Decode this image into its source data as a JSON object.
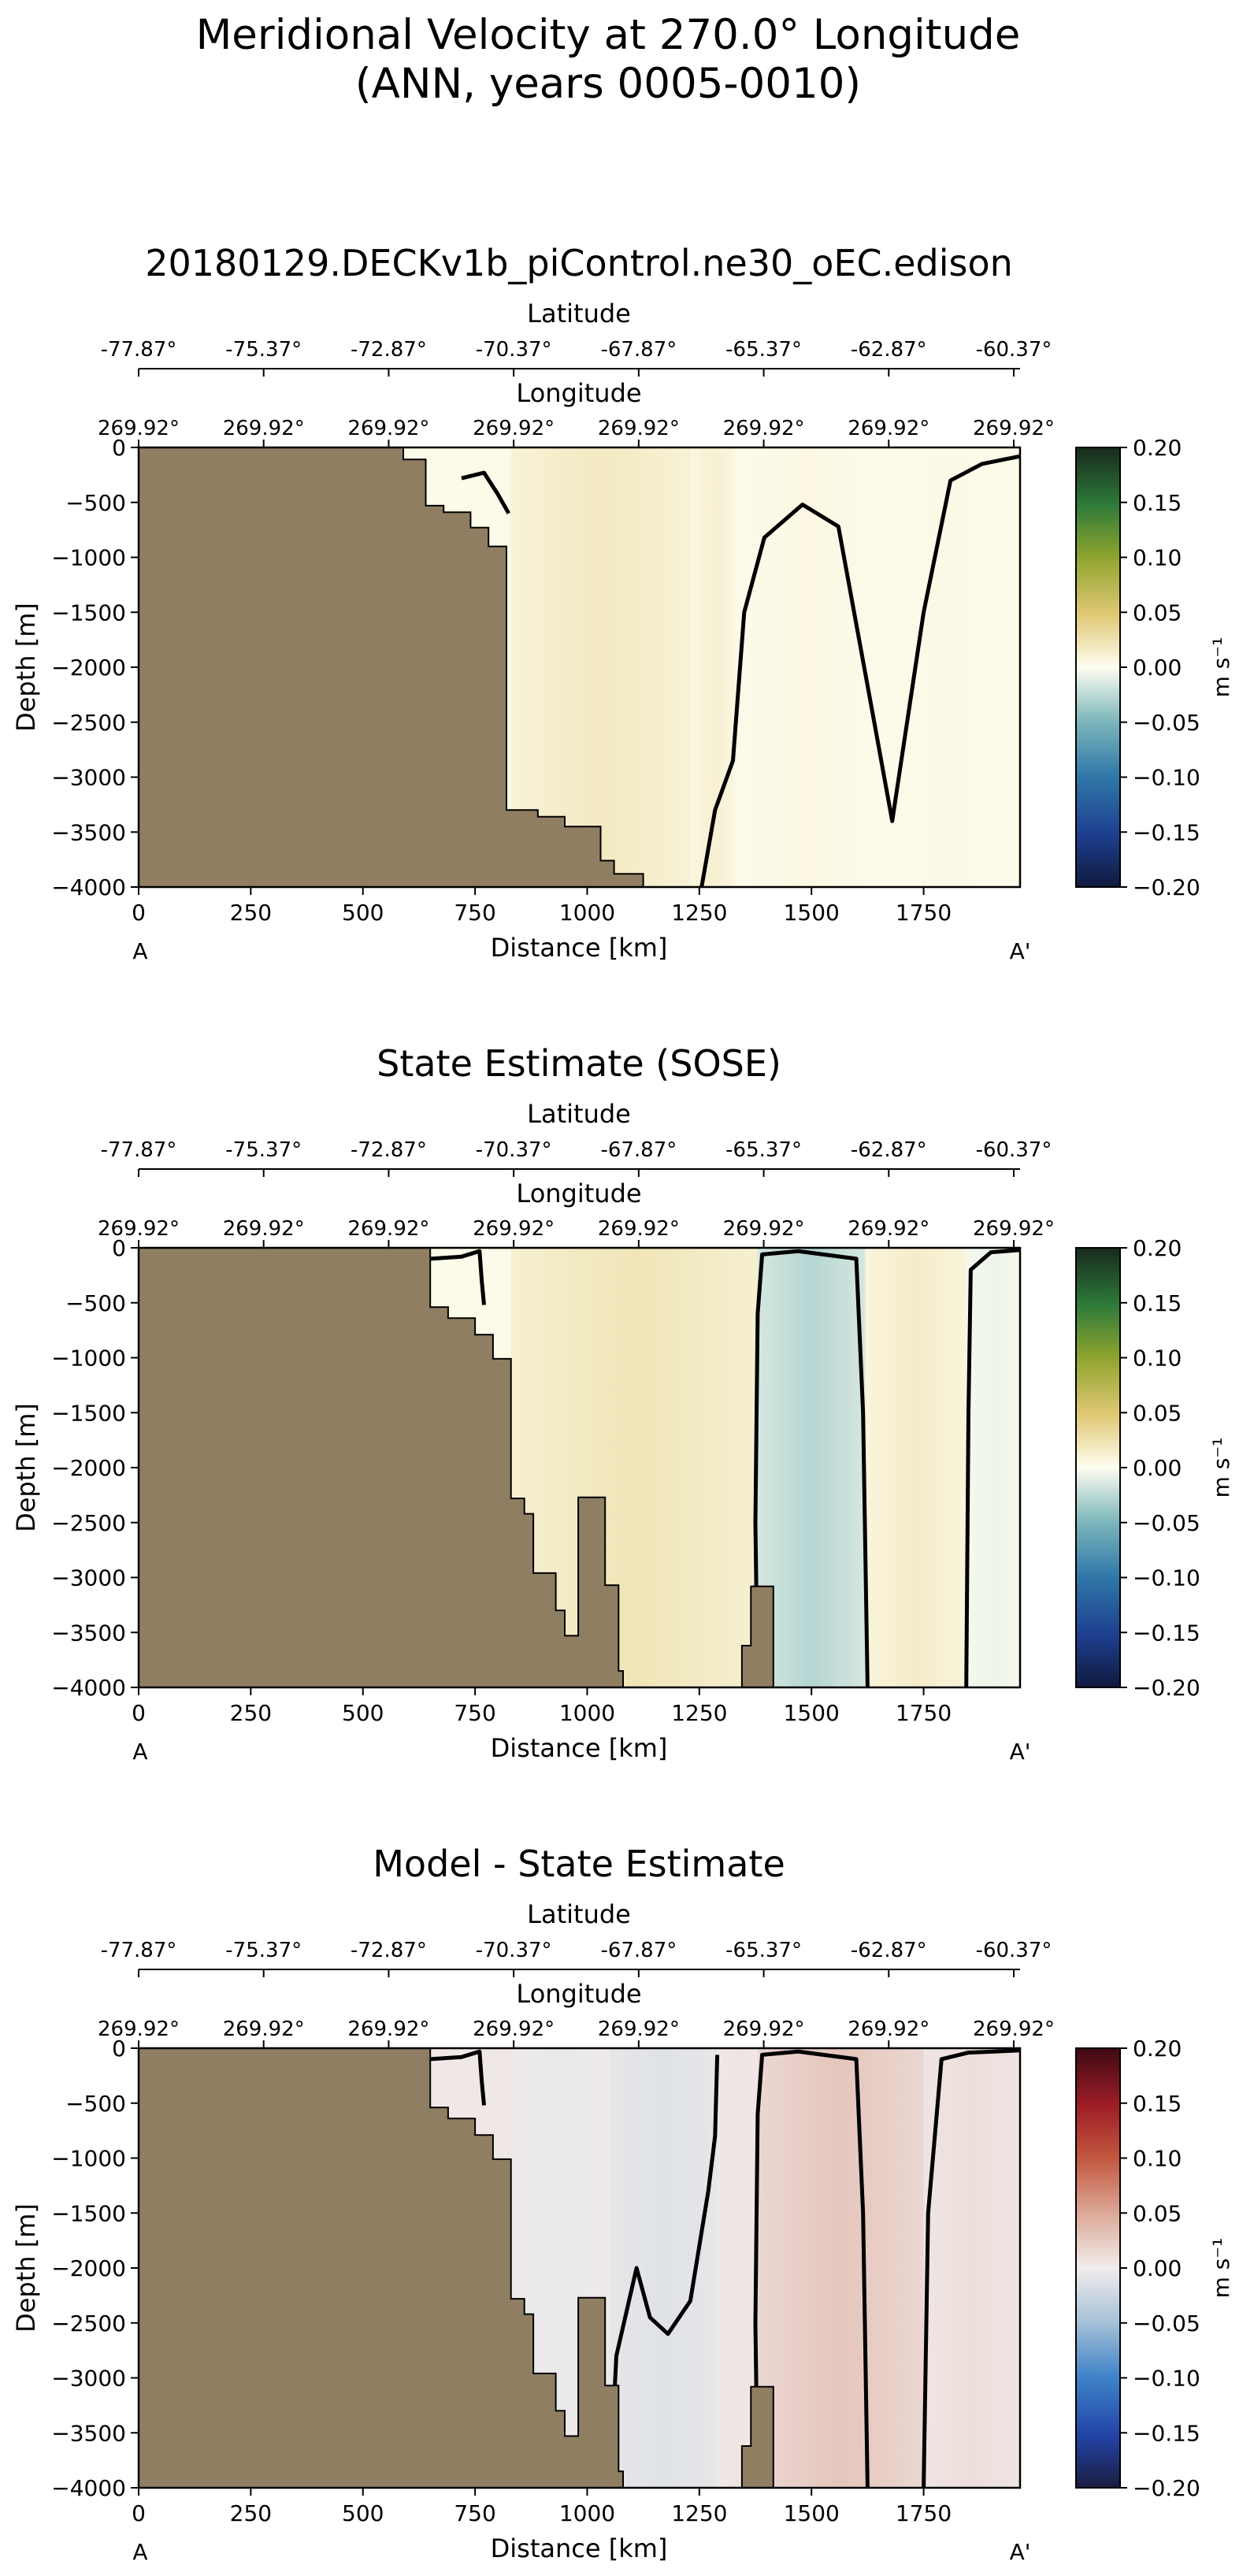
{
  "figure": {
    "title_line1": "Meridional Velocity at 270.0° Longitude",
    "title_line2": "(ANN, years 0005-0010)"
  },
  "chart_data": [
    {
      "type": "heatmap",
      "title": "20180129.DECKv1b_piControl.ne30_oEC.edison",
      "xlabel": "Distance [km]",
      "ylabel": "Depth [m]",
      "xlim": [
        0,
        1965
      ],
      "ylim": [
        -4000,
        0
      ],
      "x_ticks": [
        0,
        250,
        500,
        750,
        1000,
        1250,
        1500,
        1750
      ],
      "y_ticks": [
        0,
        -500,
        -1000,
        -1500,
        -2000,
        -2500,
        -3000,
        -3500,
        -4000
      ],
      "lat_label": "Latitude",
      "lat_ticks": [
        "-77.87°",
        "-75.37°",
        "-72.87°",
        "-70.37°",
        "-67.87°",
        "-65.37°",
        "-62.87°",
        "-60.37°"
      ],
      "lon_label": "Longitude",
      "lon_ticks": [
        "269.92°",
        "269.92°",
        "269.92°",
        "269.92°",
        "269.92°",
        "269.92°",
        "269.92°",
        "269.92°"
      ],
      "endpoint_left": "A",
      "endpoint_right": "A'",
      "colorbar": {
        "label": "m s⁻¹",
        "colormap": "delta",
        "ticks": [
          "0.20",
          "0.15",
          "0.10",
          "0.05",
          "0.00",
          "−0.05",
          "−0.10",
          "−0.15",
          "−0.20"
        ]
      },
      "bathymetry": [
        [
          0,
          -4000
        ],
        [
          0,
          0
        ],
        [
          590,
          0
        ],
        [
          590,
          -110
        ],
        [
          640,
          -110
        ],
        [
          640,
          -530
        ],
        [
          680,
          -530
        ],
        [
          680,
          -590
        ],
        [
          740,
          -590
        ],
        [
          740,
          -730
        ],
        [
          780,
          -730
        ],
        [
          780,
          -900
        ],
        [
          820,
          -900
        ],
        [
          820,
          -3300
        ],
        [
          890,
          -3300
        ],
        [
          890,
          -3360
        ],
        [
          950,
          -3360
        ],
        [
          950,
          -3450
        ],
        [
          1030,
          -3450
        ],
        [
          1030,
          -3760
        ],
        [
          1060,
          -3760
        ],
        [
          1060,
          -3880
        ],
        [
          1125,
          -3880
        ],
        [
          1125,
          -4000
        ]
      ],
      "field": [
        {
          "x0": 830,
          "x1": 1230,
          "v": 0.018
        },
        {
          "x0": 1230,
          "x1": 1330,
          "v": 0.012
        },
        {
          "x0": 1330,
          "x1": 1640,
          "v": 0.005
        },
        {
          "x0": 1640,
          "x1": 1965,
          "v": 0.004
        }
      ],
      "contours": [
        "M 1255,-4000 L 1285,-3300 L 1325,-2850 L 1350,-1500 L 1395,-820 L 1480,-520 L 1560,-720 L 1640,-2500 L 1680,-3400 L 1750,-1500 L 1810,-300 L 1880,-150 L 1965,-80",
        "M 720,-280 L 770,-230 L 800,-420 L 825,-600"
      ]
    },
    {
      "type": "heatmap",
      "title": "State Estimate (SOSE)",
      "xlabel": "Distance [km]",
      "ylabel": "Depth [m]",
      "xlim": [
        0,
        1965
      ],
      "ylim": [
        -4000,
        0
      ],
      "x_ticks": [
        0,
        250,
        500,
        750,
        1000,
        1250,
        1500,
        1750
      ],
      "y_ticks": [
        0,
        -500,
        -1000,
        -1500,
        -2000,
        -2500,
        -3000,
        -3500,
        -4000
      ],
      "lat_label": "Latitude",
      "lat_ticks": [
        "-77.87°",
        "-75.37°",
        "-72.87°",
        "-70.37°",
        "-67.87°",
        "-65.37°",
        "-62.87°",
        "-60.37°"
      ],
      "lon_label": "Longitude",
      "lon_ticks": [
        "269.92°",
        "269.92°",
        "269.92°",
        "269.92°",
        "269.92°",
        "269.92°",
        "269.92°",
        "269.92°"
      ],
      "endpoint_left": "A",
      "endpoint_right": "A'",
      "colorbar": {
        "label": "m s⁻¹",
        "colormap": "delta",
        "ticks": [
          "0.20",
          "0.15",
          "0.10",
          "0.05",
          "0.00",
          "−0.05",
          "−0.10",
          "−0.15",
          "−0.20"
        ]
      },
      "bathymetry": [
        [
          0,
          -4000
        ],
        [
          0,
          0
        ],
        [
          650,
          0
        ],
        [
          650,
          -540
        ],
        [
          690,
          -540
        ],
        [
          690,
          -640
        ],
        [
          750,
          -640
        ],
        [
          750,
          -790
        ],
        [
          790,
          -790
        ],
        [
          790,
          -1010
        ],
        [
          830,
          -1010
        ],
        [
          830,
          -2280
        ],
        [
          860,
          -2280
        ],
        [
          860,
          -2420
        ],
        [
          880,
          -2420
        ],
        [
          880,
          -2960
        ],
        [
          930,
          -2960
        ],
        [
          930,
          -3300
        ],
        [
          950,
          -3300
        ],
        [
          950,
          -3530
        ],
        [
          980,
          -3530
        ],
        [
          980,
          -2270
        ],
        [
          1040,
          -2270
        ],
        [
          1040,
          -3070
        ],
        [
          1070,
          -3070
        ],
        [
          1070,
          -3850
        ],
        [
          1080,
          -3850
        ],
        [
          1080,
          -4000
        ],
        [
          1345,
          -4000
        ],
        [
          1345,
          -3620
        ],
        [
          1365,
          -3620
        ],
        [
          1365,
          -3080
        ],
        [
          1415,
          -3080
        ],
        [
          1415,
          -4000
        ],
        [
          0,
          -4000
        ]
      ],
      "field": [
        {
          "x0": 830,
          "x1": 1380,
          "v": 0.022
        },
        {
          "x0": 1380,
          "x1": 1620,
          "v": -0.028
        },
        {
          "x0": 1620,
          "x1": 1845,
          "v": 0.015
        },
        {
          "x0": 1845,
          "x1": 1965,
          "v": -0.006
        }
      ],
      "contours": [
        "M 1380,-4000 L 1375,-2500 L 1380,-600 L 1390,-60 L 1470,-30 L 1600,-100 L 1615,-1500 L 1625,-4000",
        "M 1845,-4000 L 1850,-1500 L 1855,-200 L 1900,-40 L 1965,-20",
        "M 650,-100 L 720,-80 L 760,-30 L 765,-300 L 770,-520"
      ]
    },
    {
      "type": "heatmap",
      "title": "Model - State Estimate",
      "xlabel": "Distance [km]",
      "ylabel": "Depth [m]",
      "xlim": [
        0,
        1965
      ],
      "ylim": [
        -4000,
        0
      ],
      "x_ticks": [
        0,
        250,
        500,
        750,
        1000,
        1250,
        1500,
        1750
      ],
      "y_ticks": [
        0,
        -500,
        -1000,
        -1500,
        -2000,
        -2500,
        -3000,
        -3500,
        -4000
      ],
      "lat_label": "Latitude",
      "lat_ticks": [
        "-77.87°",
        "-75.37°",
        "-72.87°",
        "-70.37°",
        "-67.87°",
        "-65.37°",
        "-62.87°",
        "-60.37°"
      ],
      "lon_label": "Longitude",
      "lon_ticks": [
        "269.92°",
        "269.92°",
        "269.92°",
        "269.92°",
        "269.92°",
        "269.92°",
        "269.92°",
        "269.92°"
      ],
      "endpoint_left": "A",
      "endpoint_right": "A'",
      "colorbar": {
        "label": "m s⁻¹",
        "colormap": "balance",
        "ticks": [
          "0.20",
          "0.15",
          "0.10",
          "0.05",
          "0.00",
          "−0.05",
          "−0.10",
          "−0.15",
          "−0.20"
        ]
      },
      "bathymetry": [
        [
          0,
          -4000
        ],
        [
          0,
          0
        ],
        [
          650,
          0
        ],
        [
          650,
          -540
        ],
        [
          690,
          -540
        ],
        [
          690,
          -640
        ],
        [
          750,
          -640
        ],
        [
          750,
          -790
        ],
        [
          790,
          -790
        ],
        [
          790,
          -1010
        ],
        [
          830,
          -1010
        ],
        [
          830,
          -2280
        ],
        [
          860,
          -2280
        ],
        [
          860,
          -2420
        ],
        [
          880,
          -2420
        ],
        [
          880,
          -2960
        ],
        [
          930,
          -2960
        ],
        [
          930,
          -3300
        ],
        [
          950,
          -3300
        ],
        [
          950,
          -3530
        ],
        [
          980,
          -3530
        ],
        [
          980,
          -2270
        ],
        [
          1040,
          -2270
        ],
        [
          1040,
          -3070
        ],
        [
          1070,
          -3070
        ],
        [
          1070,
          -3850
        ],
        [
          1080,
          -3850
        ],
        [
          1080,
          -4000
        ],
        [
          1345,
          -4000
        ],
        [
          1345,
          -3620
        ],
        [
          1365,
          -3620
        ],
        [
          1365,
          -3080
        ],
        [
          1415,
          -3080
        ],
        [
          1415,
          -4000
        ],
        [
          0,
          -4000
        ]
      ],
      "field": [
        {
          "x0": 830,
          "x1": 1050,
          "v": -0.004
        },
        {
          "x0": 1050,
          "x1": 1290,
          "v": -0.012
        },
        {
          "x0": 1290,
          "x1": 1380,
          "v": 0.006
        },
        {
          "x0": 1380,
          "x1": 1750,
          "v": 0.028
        },
        {
          "x0": 1750,
          "x1": 1965,
          "v": 0.01
        }
      ],
      "contours": [
        "M 1380,-4000 L 1375,-2500 L 1380,-600 L 1390,-60 L 1470,-30 L 1600,-100 L 1615,-1500 L 1625,-4000",
        "M 1750,-4000 L 1760,-1500 L 1790,-100 L 1850,-40 L 1965,-20",
        "M 1050,-4000 L 1065,-2800 L 1110,-2000 L 1140,-2450 L 1180,-2600 L 1230,-2300 L 1270,-1300 L 1285,-800 L 1290,-60",
        "M 650,-100 L 720,-80 L 760,-30 L 765,-300 L 770,-520"
      ]
    }
  ]
}
